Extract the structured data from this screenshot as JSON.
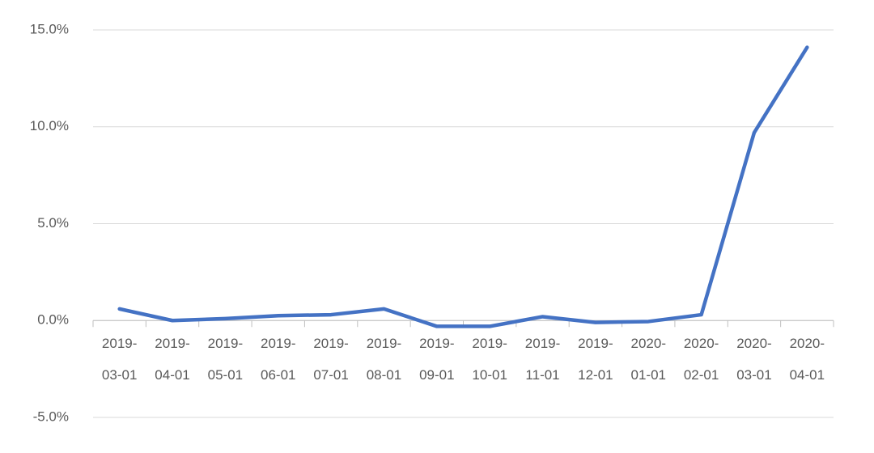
{
  "chart_data": {
    "type": "line",
    "categories": [
      "2019-03-01",
      "2019-04-01",
      "2019-05-01",
      "2019-06-01",
      "2019-07-01",
      "2019-08-01",
      "2019-09-01",
      "2019-10-01",
      "2019-11-01",
      "2019-12-01",
      "2020-01-01",
      "2020-02-01",
      "2020-03-01",
      "2020-04-01"
    ],
    "series": [
      {
        "color": "#4472c4",
        "values": [
          0.6,
          0.0,
          0.1,
          0.25,
          0.3,
          0.6,
          -0.3,
          -0.3,
          0.2,
          -0.1,
          -0.05,
          0.3,
          9.7,
          14.1
        ]
      }
    ],
    "ylim": [
      -5,
      15
    ],
    "yticks": [
      {
        "value": -5,
        "label": "-5.0%"
      },
      {
        "value": 0,
        "label": "0.0%"
      },
      {
        "value": 5,
        "label": "5.0%"
      },
      {
        "value": 10,
        "label": "10.0%"
      },
      {
        "value": 15,
        "label": "15.0%"
      }
    ],
    "grid": true
  }
}
